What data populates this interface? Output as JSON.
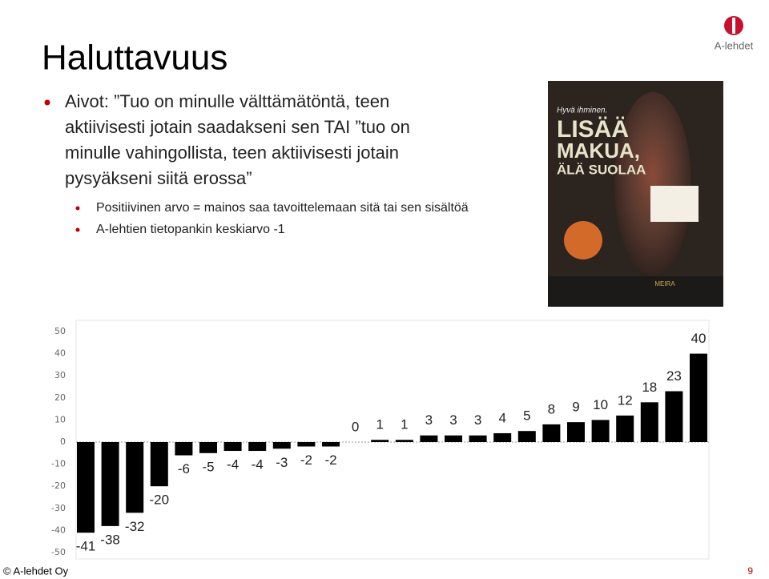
{
  "slide": {
    "title": "Haluttavuus",
    "bullet_lines": [
      "Aivot: ”Tuo on minulle välttämätöntä, teen",
      "aktiivisesti jotain saadakseni sen TAI ”tuo on",
      "minulle vahingollista, teen aktiivisesti jotain",
      "pysyäkseni siitä erossa”"
    ],
    "sub_bullets": [
      "Positiivinen arvo = mainos saa tavoittelemaan sitä tai sen sisältöä",
      "A-lehtien tietopankin keskiarvo -1"
    ],
    "logo": "A-lehdet",
    "ad": {
      "tagline": "Hyvä ihminen.",
      "headline1": "LISÄÄ",
      "headline2": "MAKUA,",
      "headline3": "ÄLÄ SUOLAA",
      "brand": "MEIRA"
    },
    "footer": "© A-lehdet Oy",
    "page_number": "9"
  },
  "chart_data": {
    "type": "bar",
    "values": [
      -41,
      -38,
      -32,
      -20,
      -6,
      -5,
      -4,
      -4,
      -3,
      -2,
      -2,
      0,
      1,
      1,
      3,
      3,
      3,
      4,
      5,
      8,
      9,
      10,
      12,
      18,
      23,
      40
    ],
    "color": "#000000",
    "ylim": [
      -50,
      50
    ],
    "yticks": [
      -50,
      -40,
      -30,
      -20,
      -10,
      0,
      10,
      20,
      30,
      40,
      50
    ],
    "grid": false
  }
}
